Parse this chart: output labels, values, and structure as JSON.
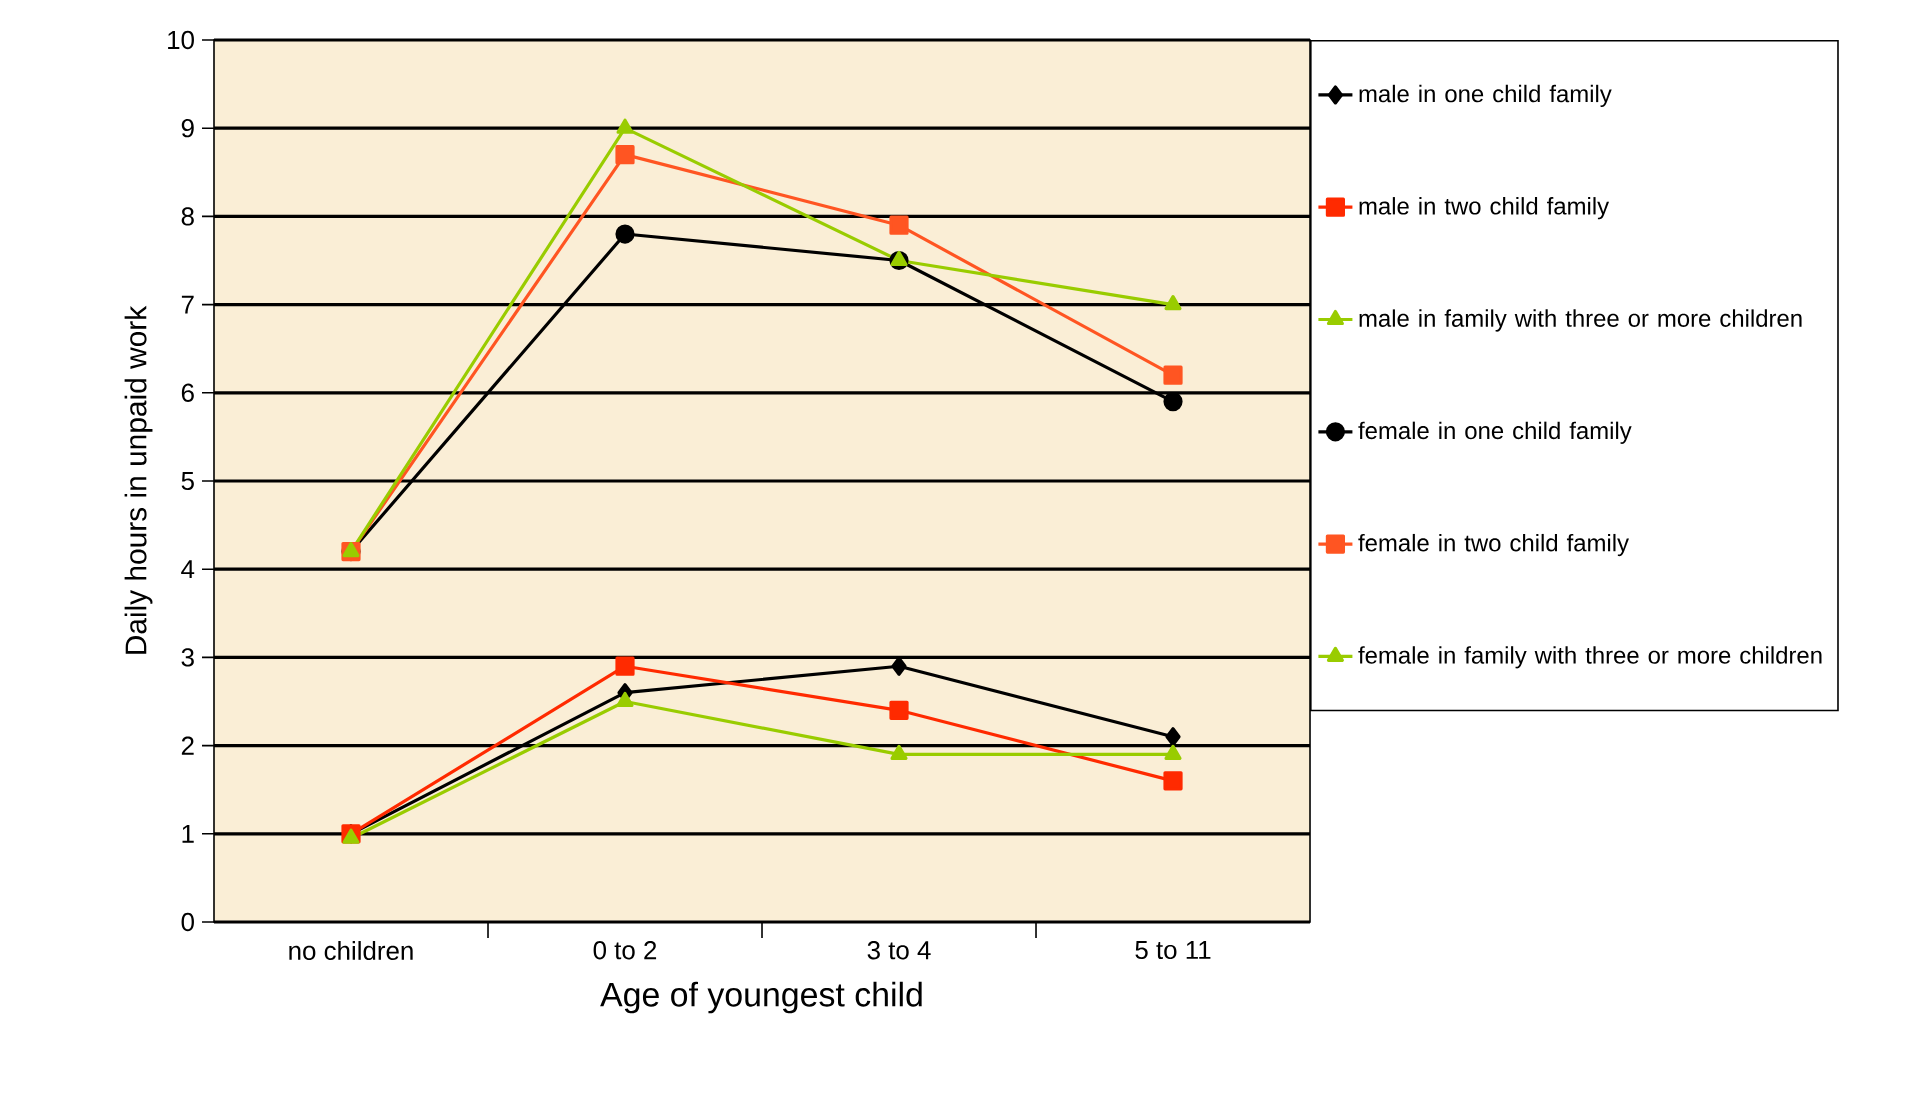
{
  "chart_data": {
    "type": "line",
    "xlabel": "Age of youngest child",
    "ylabel": "Daily hours in unpaid work",
    "categories": [
      "no children",
      "0 to 2",
      "3 to 4",
      "5 to 11"
    ],
    "ylim": [
      0,
      10
    ],
    "yticks": [
      0,
      1,
      2,
      3,
      4,
      5,
      6,
      7,
      8,
      9,
      10
    ],
    "grid": "y",
    "legend": "right",
    "series": [
      {
        "name": "male in one child family",
        "color": "#000000",
        "marker": "diamond",
        "values": [
          1.0,
          2.6,
          2.9,
          2.1
        ]
      },
      {
        "name": "male in two child family",
        "color": "#ff2a00",
        "marker": "square",
        "values": [
          1.0,
          2.9,
          2.4,
          1.6
        ]
      },
      {
        "name": "male in family with three or more children",
        "color": "#99cc00",
        "marker": "triangle",
        "values": [
          0.95,
          2.5,
          1.9,
          1.9
        ]
      },
      {
        "name": "female in one child family",
        "color": "#000000",
        "marker": "circle",
        "values": [
          4.2,
          7.8,
          7.5,
          5.9
        ]
      },
      {
        "name": "female in two child family",
        "color": "#ff5522",
        "marker": "square",
        "values": [
          4.2,
          8.7,
          7.9,
          6.2
        ]
      },
      {
        "name": "female in family with three or more children",
        "color": "#99cc00",
        "marker": "triangle",
        "values": [
          4.2,
          9.0,
          7.5,
          7.0
        ]
      }
    ]
  }
}
